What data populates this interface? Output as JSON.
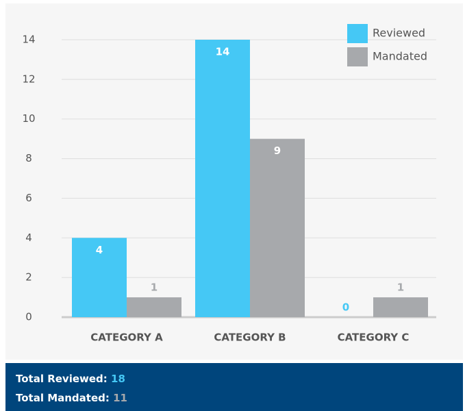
{
  "chart_data": {
    "type": "bar",
    "categories": [
      "CATEGORY A",
      "CATEGORY B",
      "CATEGORY C"
    ],
    "series": [
      {
        "name": "Reviewed",
        "color": "#45c8f5",
        "values": [
          4,
          14,
          0
        ]
      },
      {
        "name": "Mandated",
        "color": "#a7a9ac",
        "values": [
          1,
          9,
          1
        ]
      }
    ],
    "ylim": [
      0,
      14
    ],
    "yticks": [
      0,
      2,
      4,
      6,
      8,
      10,
      12,
      14
    ],
    "grid": true,
    "legend": "top-right"
  },
  "footer": {
    "reviewed_label": "Total Reviewed:",
    "reviewed_total": "18",
    "mandated_label": "Total Mandated:",
    "mandated_total": "11"
  }
}
